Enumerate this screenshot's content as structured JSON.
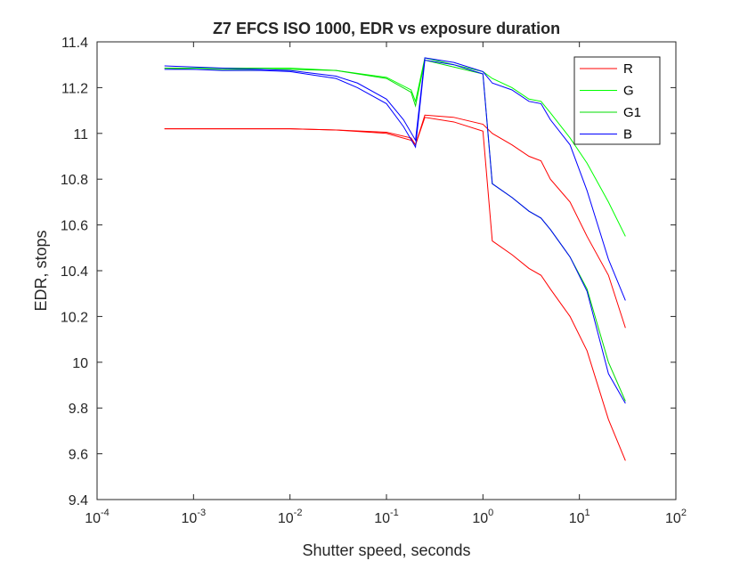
{
  "chart_data": {
    "type": "line",
    "title": "Z7 EFCS ISO 1000, EDR vs exposure duration",
    "xlabel": "Shutter speed, seconds",
    "ylabel": "EDR, stops",
    "xscale": "log",
    "xlim": [
      0.0001,
      100
    ],
    "ylim": [
      9.4,
      11.4
    ],
    "xtick_labels": [
      {
        "base": "10",
        "exp": "-4"
      },
      {
        "base": "10",
        "exp": "-3"
      },
      {
        "base": "10",
        "exp": "-2"
      },
      {
        "base": "10",
        "exp": "-1"
      },
      {
        "base": "10",
        "exp": "0"
      },
      {
        "base": "10",
        "exp": "1"
      },
      {
        "base": "10",
        "exp": "2"
      }
    ],
    "ytick_labels": [
      "9.4",
      "9.6",
      "9.8",
      "10",
      "10.2",
      "10.4",
      "10.6",
      "10.8",
      "11",
      "11.2",
      "11.4"
    ],
    "grid": false,
    "legend_position": "top-right",
    "series": [
      {
        "name": "R",
        "color": "#ff0000",
        "x": [
          0.0005,
          0.001,
          0.002,
          0.005,
          0.01,
          0.03,
          0.1,
          0.18,
          0.2,
          0.25,
          0.5,
          1.0,
          1.25,
          2.0,
          3.0,
          4.0,
          5.0,
          8.0,
          12.0,
          20.0,
          30.0
        ],
        "y": [
          11.02,
          11.02,
          11.02,
          11.02,
          11.02,
          11.015,
          11.005,
          10.98,
          10.95,
          11.08,
          11.07,
          11.04,
          11.0,
          10.95,
          10.9,
          10.88,
          10.8,
          10.7,
          10.55,
          10.38,
          10.15
        ]
      },
      {
        "name": "R",
        "color": "#ff0000",
        "x": [
          0.0005,
          0.001,
          0.002,
          0.005,
          0.01,
          0.03,
          0.1,
          0.18,
          0.2,
          0.25,
          0.5,
          1.0,
          1.25,
          2.0,
          3.0,
          4.0,
          5.0,
          8.0,
          12.0,
          20.0,
          30.0
        ],
        "y": [
          11.02,
          11.02,
          11.02,
          11.02,
          11.02,
          11.015,
          11.0,
          10.97,
          10.95,
          11.07,
          11.05,
          11.01,
          10.53,
          10.47,
          10.41,
          10.38,
          10.32,
          10.2,
          10.05,
          9.75,
          9.57
        ]
      },
      {
        "name": "G",
        "color": "#00ff00",
        "x": [
          0.0005,
          0.001,
          0.002,
          0.005,
          0.01,
          0.03,
          0.1,
          0.18,
          0.2,
          0.25,
          0.5,
          1.0,
          1.25,
          2.0,
          3.0,
          4.0,
          5.0,
          8.0,
          12.0,
          20.0,
          30.0
        ],
        "y": [
          11.285,
          11.285,
          11.285,
          11.285,
          11.285,
          11.275,
          11.245,
          11.19,
          11.14,
          11.33,
          11.3,
          11.27,
          11.24,
          11.2,
          11.15,
          11.14,
          11.09,
          10.98,
          10.87,
          10.7,
          10.55
        ]
      },
      {
        "name": "G1",
        "color": "#00dd00",
        "x": [
          0.0005,
          0.001,
          0.002,
          0.005,
          0.01,
          0.03,
          0.1,
          0.18,
          0.2,
          0.25,
          0.5,
          1.0,
          1.25,
          2.0,
          3.0,
          4.0,
          5.0,
          8.0,
          12.0,
          20.0,
          30.0
        ],
        "y": [
          11.285,
          11.28,
          11.28,
          11.28,
          11.28,
          11.275,
          11.24,
          11.18,
          11.12,
          11.32,
          11.29,
          11.26,
          10.78,
          10.72,
          10.66,
          10.63,
          10.58,
          10.46,
          10.32,
          10.0,
          9.83
        ]
      },
      {
        "name": "B",
        "color": "#0000ff",
        "x": [
          0.0005,
          0.001,
          0.002,
          0.005,
          0.01,
          0.03,
          0.05,
          0.1,
          0.15,
          0.2,
          0.25,
          0.5,
          1.0,
          1.25,
          2.0,
          3.0,
          4.0,
          5.0,
          8.0,
          12.0,
          20.0,
          30.0
        ],
        "y": [
          11.295,
          11.29,
          11.285,
          11.28,
          11.275,
          11.25,
          11.22,
          11.15,
          11.06,
          10.97,
          11.33,
          11.31,
          11.27,
          11.22,
          11.19,
          11.14,
          11.13,
          11.06,
          10.95,
          10.75,
          10.45,
          10.27
        ]
      },
      {
        "name": "B",
        "color": "#0000ff",
        "x": [
          0.0005,
          0.001,
          0.002,
          0.005,
          0.01,
          0.03,
          0.05,
          0.1,
          0.15,
          0.2,
          0.25,
          0.5,
          1.0,
          1.25,
          2.0,
          3.0,
          4.0,
          5.0,
          8.0,
          12.0,
          20.0,
          30.0
        ],
        "y": [
          11.28,
          11.28,
          11.275,
          11.275,
          11.27,
          11.24,
          11.2,
          11.13,
          11.03,
          10.94,
          11.32,
          11.3,
          11.26,
          10.78,
          10.72,
          10.66,
          10.63,
          10.58,
          10.46,
          10.31,
          9.95,
          9.82
        ]
      }
    ],
    "legend": [
      {
        "label": "R",
        "color": "#ff0000"
      },
      {
        "label": "G",
        "color": "#00ff00"
      },
      {
        "label": "G1",
        "color": "#00dd00"
      },
      {
        "label": "B",
        "color": "#0000ff"
      }
    ]
  }
}
